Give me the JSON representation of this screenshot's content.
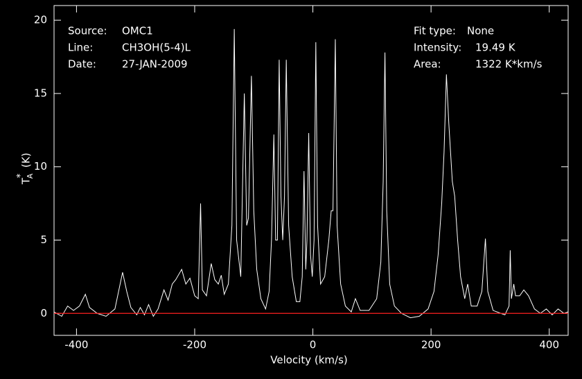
{
  "chart_data": {
    "type": "line",
    "xlabel": "Velocity (km/s)",
    "ylabel": {
      "symbol": "T",
      "subscript": "A",
      "superscript": "*",
      "unit": "(K)"
    },
    "info_left": [
      [
        "Source:",
        "OMC1"
      ],
      [
        "Line:",
        "CH3OH(5-4)L"
      ],
      [
        "Date:",
        "27-JAN-2009"
      ]
    ],
    "info_right": [
      [
        "Fit type:",
        "None"
      ],
      [
        "Intensity:",
        "19.49 K"
      ],
      [
        "Area:",
        "1322 K*km/s"
      ]
    ],
    "xlim": [
      -438,
      432
    ],
    "ylim": [
      -1.5,
      21
    ],
    "xticks": [
      -400,
      -200,
      0,
      200,
      400
    ],
    "yticks": [
      0,
      5,
      10,
      15,
      20
    ],
    "baseline": {
      "value": 0,
      "color": "#ff2020"
    },
    "x": [
      -438,
      -425,
      -415,
      -405,
      -395,
      -385,
      -378,
      -365,
      -350,
      -335,
      -322,
      -315,
      -308,
      -298,
      -292,
      -285,
      -278,
      -270,
      -262,
      -252,
      -245,
      -238,
      -232,
      -222,
      -215,
      -208,
      -200,
      -194,
      -190,
      -187,
      -180,
      -172,
      -166,
      -160,
      -155,
      -150,
      -143,
      -137,
      -133,
      -129,
      -122,
      -116,
      -112,
      -109,
      -104,
      -100,
      -95,
      -88,
      -80,
      -74,
      -70,
      -66,
      -63,
      -60,
      -57,
      -54,
      -51,
      -48,
      -45,
      -41,
      -35,
      -28,
      -22,
      -18,
      -15,
      -12,
      -10,
      -7,
      -4,
      -1,
      2,
      5,
      8,
      13,
      20,
      27,
      31,
      34,
      38,
      41,
      47,
      55,
      65,
      72,
      80,
      95,
      108,
      115,
      119,
      122,
      125,
      130,
      138,
      150,
      165,
      180,
      195,
      205,
      212,
      218,
      222,
      226,
      230,
      236,
      240,
      245,
      250,
      257,
      262,
      268,
      278,
      286,
      292,
      296,
      305,
      318,
      325,
      332,
      334,
      336,
      340,
      343,
      350,
      357,
      365,
      375,
      385,
      395,
      405,
      415,
      425,
      432
    ],
    "series": [
      {
        "color": "#ffffff",
        "values": [
          0.1,
          -0.2,
          0.5,
          0.2,
          0.5,
          1.3,
          0.4,
          0.0,
          -0.2,
          0.3,
          2.8,
          1.5,
          0.4,
          -0.1,
          0.4,
          -0.1,
          0.6,
          -0.2,
          0.3,
          1.6,
          0.9,
          2.0,
          2.3,
          3.0,
          2.0,
          2.4,
          1.2,
          1.0,
          7.5,
          1.6,
          1.2,
          3.4,
          2.3,
          2.0,
          2.6,
          1.3,
          2.0,
          6,
          19.4,
          5,
          2.5,
          15.0,
          6,
          6.5,
          16.2,
          7,
          3,
          1.0,
          0.3,
          1.5,
          5,
          12.2,
          5,
          5,
          17.3,
          8,
          5,
          8,
          17.3,
          6,
          2.5,
          0.8,
          0.8,
          2.5,
          9.7,
          3,
          5,
          12.3,
          4,
          2.5,
          5,
          18.5,
          6,
          2,
          2.5,
          5,
          7,
          7,
          18.7,
          6,
          2,
          0.5,
          0.1,
          1.0,
          0.2,
          0.2,
          1.0,
          3.5,
          9,
          17.8,
          7,
          2,
          0.5,
          0,
          -0.3,
          -0.2,
          0.3,
          1.5,
          4,
          7.5,
          11,
          16.3,
          13,
          9,
          8,
          5,
          2.5,
          1.0,
          2.0,
          0.5,
          0.5,
          1.5,
          5.1,
          1.5,
          0.2,
          0.0,
          -0.1,
          0.5,
          4.3,
          1.0,
          2.0,
          1.2,
          1.2,
          1.6,
          1.2,
          0.3,
          0,
          0.3,
          -0.1,
          0.3,
          0,
          0.1
        ]
      }
    ]
  }
}
